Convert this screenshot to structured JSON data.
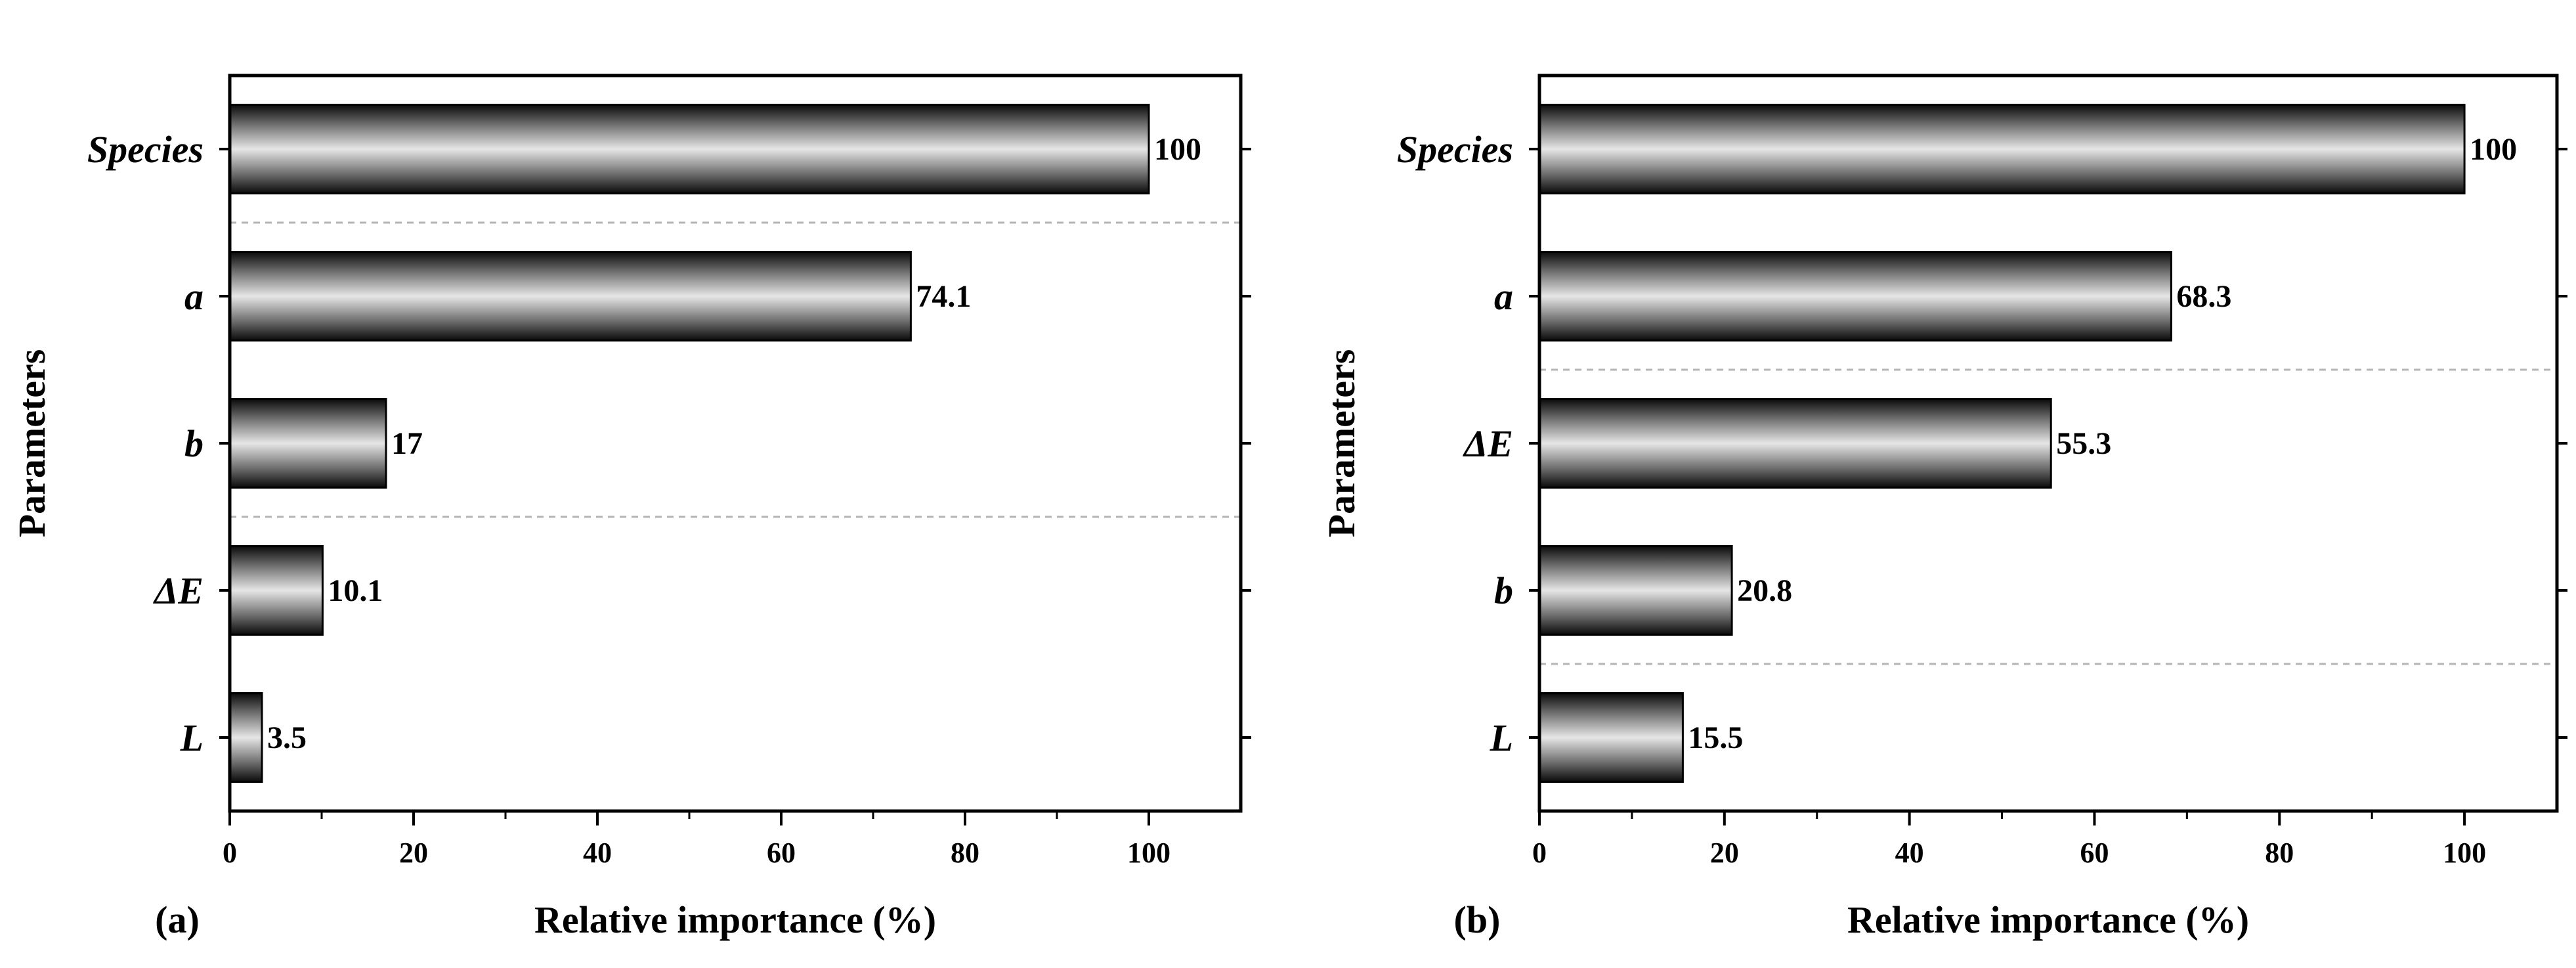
{
  "chart_data": [
    {
      "type": "bar",
      "orientation": "horizontal",
      "panel_label": "(a)",
      "xlabel": "Relative importance (%)",
      "ylabel": "Parameters",
      "xlim": [
        0,
        110
      ],
      "xticks": [
        0,
        20,
        40,
        60,
        80,
        100
      ],
      "categories": [
        "Species",
        "a",
        "b",
        "ΔE",
        "L"
      ],
      "values": [
        100,
        74.1,
        17,
        10.1,
        3.5
      ],
      "value_labels": [
        "100",
        "74.1",
        "17",
        "10.1",
        "3.5"
      ],
      "dashed_separators_after": [
        "Species",
        "b"
      ]
    },
    {
      "type": "bar",
      "orientation": "horizontal",
      "panel_label": "(b)",
      "xlabel": "Relative importance (%)",
      "ylabel": "Parameters",
      "xlim": [
        0,
        110
      ],
      "xticks": [
        0,
        20,
        40,
        60,
        80,
        100
      ],
      "categories": [
        "Species",
        "a",
        "ΔE",
        "b",
        "L"
      ],
      "values": [
        100,
        68.3,
        55.3,
        20.8,
        15.5
      ],
      "value_labels": [
        "100",
        "68.3",
        "55.3",
        "20.8",
        "15.5"
      ],
      "dashed_separators_after": [
        "a",
        "b"
      ]
    }
  ]
}
